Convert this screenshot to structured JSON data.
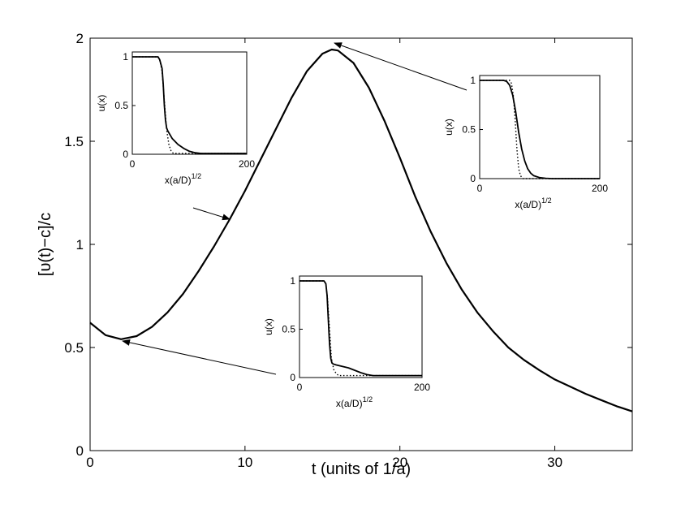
{
  "chart_data": {
    "type": "line",
    "xlabel": "t (units of 1/a)",
    "ylabel": "[υ(t)−c]/c",
    "xlim": [
      0,
      35
    ],
    "ylim": [
      0,
      2
    ],
    "xticks": [
      "0",
      "10",
      "20",
      "30"
    ],
    "yticks": [
      "0",
      "0.5",
      "1",
      "1.5",
      "2"
    ],
    "grid": false,
    "series": [
      {
        "x": [
          0,
          1,
          2,
          3,
          4,
          5,
          6,
          7,
          8,
          9,
          10,
          11,
          12,
          13,
          14,
          15,
          15.6,
          16,
          17,
          18,
          19,
          20,
          21,
          22,
          23,
          24,
          25,
          26,
          27,
          28,
          29,
          30,
          31,
          32,
          33,
          34,
          35
        ],
        "y": [
          0.62,
          0.56,
          0.54,
          0.555,
          0.6,
          0.67,
          0.76,
          0.87,
          0.99,
          1.12,
          1.26,
          1.41,
          1.56,
          1.71,
          1.84,
          1.925,
          1.945,
          1.94,
          1.88,
          1.76,
          1.6,
          1.42,
          1.23,
          1.06,
          0.91,
          0.78,
          0.67,
          0.58,
          0.5,
          0.44,
          0.39,
          0.345,
          0.31,
          0.275,
          0.245,
          0.215,
          0.19
        ]
      }
    ],
    "insets": [
      {
        "ylabel": "u(x)",
        "xlabel": "x(a/D)",
        "xlabel_sup": "1/2",
        "xlim": [
          0,
          200
        ],
        "ylim": [
          0,
          1.05
        ],
        "xticks": [
          "0",
          "200"
        ],
        "yticks": [
          "0",
          "0.5",
          "1"
        ],
        "solid": {
          "x": [
            0,
            45,
            48,
            52,
            54,
            56,
            58,
            60,
            62,
            70,
            80,
            90,
            100,
            110,
            120,
            200
          ],
          "y": [
            1.0,
            1.0,
            0.97,
            0.88,
            0.72,
            0.5,
            0.35,
            0.27,
            0.24,
            0.16,
            0.1,
            0.06,
            0.03,
            0.015,
            0.008,
            0.008
          ]
        },
        "dotted": {
          "x": [
            0,
            45,
            48,
            52,
            56,
            60,
            64,
            68,
            72,
            200
          ],
          "y": [
            1.0,
            1.0,
            0.97,
            0.85,
            0.55,
            0.25,
            0.1,
            0.03,
            0.008,
            0.008
          ]
        }
      },
      {
        "ylabel": "u(x)",
        "xlabel": "x(a/D)",
        "xlabel_sup": "1/2",
        "xlim": [
          0,
          200
        ],
        "ylim": [
          0,
          1.05
        ],
        "xticks": [
          "0",
          "200"
        ],
        "yticks": [
          "0",
          "0.5",
          "1"
        ],
        "solid": {
          "x": [
            0,
            40,
            45,
            50,
            55,
            60,
            65,
            70,
            75,
            80,
            85,
            90,
            100,
            110,
            120,
            200
          ],
          "y": [
            1.0,
            1.0,
            0.99,
            0.95,
            0.85,
            0.68,
            0.47,
            0.3,
            0.18,
            0.1,
            0.055,
            0.03,
            0.01,
            0.003,
            0.0,
            0.0
          ]
        },
        "dotted": {
          "x": [
            0,
            50,
            53,
            56,
            59,
            62,
            65,
            68,
            72,
            200
          ],
          "y": [
            1.0,
            1.0,
            0.97,
            0.85,
            0.6,
            0.3,
            0.1,
            0.03,
            0.0,
            0.0
          ]
        }
      },
      {
        "ylabel": "u(x)",
        "xlabel": "x(a/D)",
        "xlabel_sup": "1/2",
        "xlim": [
          0,
          200
        ],
        "ylim": [
          0,
          1.05
        ],
        "xticks": [
          "0",
          "200"
        ],
        "yticks": [
          "0",
          "0.5",
          "1"
        ],
        "solid": {
          "x": [
            0,
            40,
            43,
            45,
            47,
            49,
            51,
            53,
            55,
            60,
            80,
            100,
            110,
            120,
            200
          ],
          "y": [
            1.0,
            1.0,
            0.97,
            0.85,
            0.6,
            0.35,
            0.2,
            0.15,
            0.14,
            0.13,
            0.1,
            0.05,
            0.03,
            0.02,
            0.02
          ]
        },
        "dotted": {
          "x": [
            0,
            40,
            43,
            46,
            49,
            52,
            56,
            60,
            64,
            80,
            200
          ],
          "y": [
            1.0,
            1.0,
            0.97,
            0.8,
            0.5,
            0.2,
            0.08,
            0.04,
            0.02,
            0.02,
            0.02
          ]
        }
      }
    ]
  }
}
